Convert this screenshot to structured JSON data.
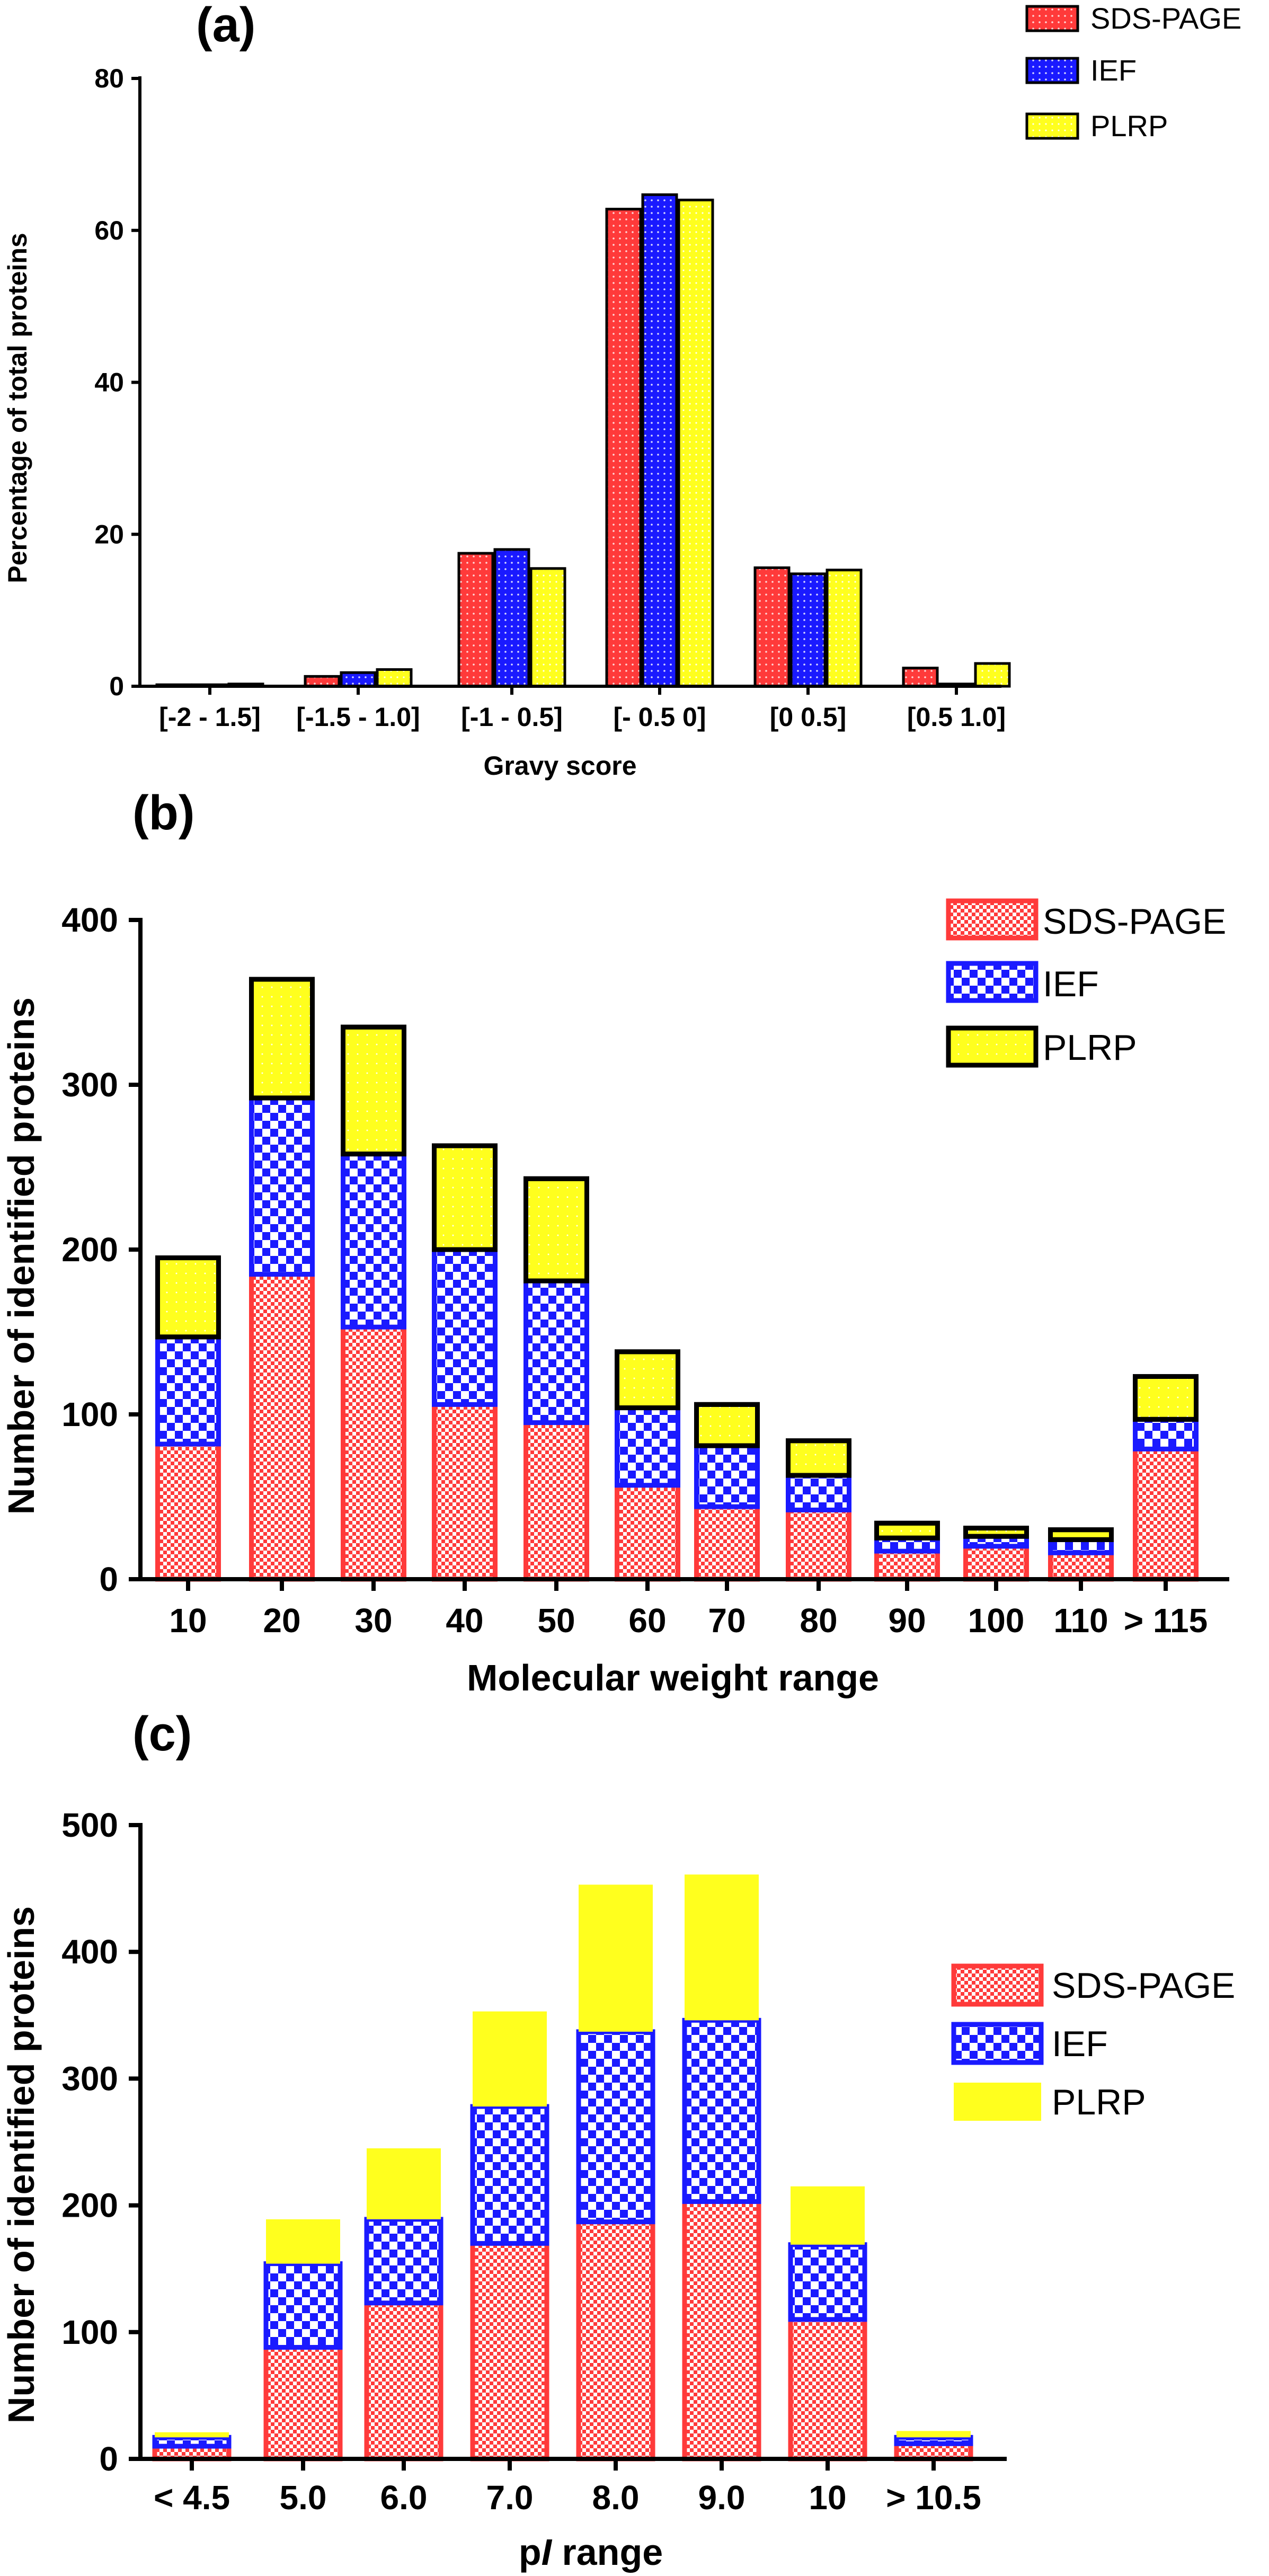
{
  "colors": {
    "sds": "#ff3a3a",
    "ief": "#1a1aff",
    "plrp": "#ffff1e",
    "axis": "#000000"
  },
  "chart_data": [
    {
      "panel": "(a)",
      "type": "bar",
      "mode": "grouped",
      "title": "",
      "xlabel": "Gravy score",
      "ylabel": "Percentage of total proteins",
      "ylim": [
        0,
        80
      ],
      "yticks": [
        0,
        20,
        40,
        60,
        80
      ],
      "categories": [
        "[-2 - 1.5]",
        "[-1.5 - 1.0]",
        "[-1 - 0.5]",
        "[- 0.5 0]",
        "[0 0.5]",
        "[0.5 1.0]"
      ],
      "series": [
        {
          "name": "SDS-PAGE",
          "key": "sds",
          "values": [
            0.2,
            1.3,
            17.5,
            62.8,
            15.6,
            2.4
          ]
        },
        {
          "name": "IEF",
          "key": "ief",
          "values": [
            0.2,
            1.8,
            18.0,
            64.7,
            14.8,
            0.3
          ]
        },
        {
          "name": "PLRP",
          "key": "plrp",
          "values": [
            0.3,
            2.2,
            15.5,
            64.0,
            15.3,
            3.0
          ]
        }
      ],
      "legend_position": "top-right"
    },
    {
      "panel": "(b)",
      "type": "bar",
      "mode": "stacked",
      "title": "",
      "xlabel": "Molecular weight range",
      "ylabel": "Number of identified proteins",
      "ylim": [
        0,
        400
      ],
      "yticks": [
        0,
        100,
        200,
        300,
        400
      ],
      "categories": [
        "10",
        "20",
        "30",
        "40",
        "50",
        "60",
        "70",
        "80",
        "90",
        "100",
        "110",
        "> 115"
      ],
      "series": [
        {
          "name": "SDS-PAGE",
          "key": "sds",
          "values": [
            82,
            185,
            153,
            106,
            95,
            57,
            44,
            42,
            17,
            20,
            16,
            79
          ]
        },
        {
          "name": "IEF",
          "key": "ief",
          "values": [
            65,
            107,
            105,
            94,
            86,
            47,
            37,
            21,
            8,
            6,
            8,
            18
          ]
        },
        {
          "name": "PLRP",
          "key": "plrp",
          "values": [
            48,
            72,
            77,
            63,
            62,
            34,
            25,
            21,
            9,
            5,
            6,
            26
          ]
        }
      ],
      "legend_position": "top-right"
    },
    {
      "panel": "(c)",
      "type": "bar",
      "mode": "stacked",
      "title": "",
      "xlabel_prefix": "p",
      "xlabel_italic": "I",
      "xlabel_suffix": " range",
      "ylabel": "Number of identified proteins",
      "ylim": [
        0,
        500
      ],
      "yticks": [
        0,
        100,
        200,
        300,
        400,
        500
      ],
      "categories": [
        "< 4.5",
        "5.0",
        "6.0",
        "7.0",
        "8.0",
        "9.0",
        "10",
        "> 10.5"
      ],
      "series": [
        {
          "name": "SDS-PAGE",
          "key": "sds",
          "values": [
            10,
            88,
            123,
            170,
            187,
            203,
            110,
            12
          ]
        },
        {
          "name": "IEF",
          "key": "ief",
          "values": [
            7,
            66,
            66,
            108,
            150,
            143,
            59,
            5
          ]
        },
        {
          "name": "PLRP",
          "key": "plrp",
          "values": [
            4,
            35,
            56,
            75,
            116,
            115,
            46,
            5
          ]
        }
      ],
      "legend_position": "right"
    }
  ]
}
